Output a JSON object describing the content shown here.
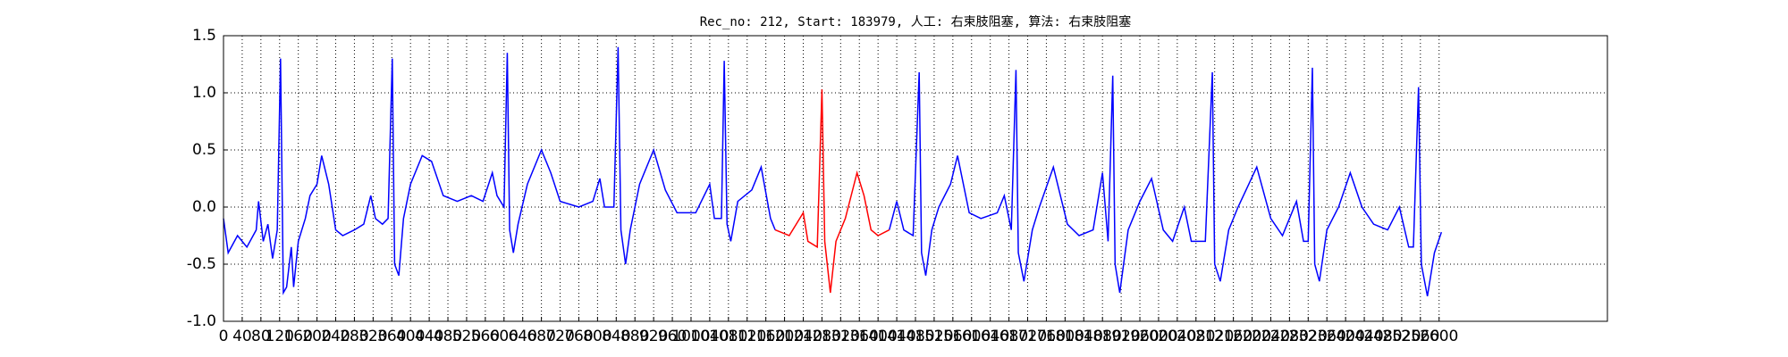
{
  "chart_data": {
    "type": "line",
    "title": "Rec_no: 212, Start: 183979, 人工: 右束肢阻塞, 算法: 右束肢阻塞",
    "x": [
      0,
      10,
      30,
      50,
      70,
      75,
      85,
      95,
      105,
      115,
      122,
      128,
      135,
      145,
      150,
      160,
      175,
      185,
      200,
      210,
      225,
      240,
      255,
      280,
      300,
      315,
      325,
      340,
      352,
      361,
      366,
      375,
      385,
      400,
      425,
      445,
      470,
      500,
      530,
      555,
      575,
      585,
      600,
      607,
      612,
      620,
      630,
      650,
      680,
      700,
      720,
      760,
      790,
      805,
      815,
      835,
      844,
      850,
      860,
      870,
      890,
      920,
      945,
      970,
      1010,
      1040,
      1050,
      1065,
      1071,
      1077,
      1085,
      1100,
      1130,
      1150,
      1170,
      1180,
      1210,
      1240,
      1250,
      1270,
      1280,
      1286,
      1298,
      1310,
      1330,
      1355,
      1370,
      1385,
      1400,
      1424,
      1440,
      1455,
      1475,
      1488,
      1493,
      1502,
      1515,
      1530,
      1555,
      1570,
      1595,
      1620,
      1655,
      1670,
      1685,
      1695,
      1700,
      1712,
      1730,
      1745,
      1775,
      1805,
      1830,
      1860,
      1880,
      1892,
      1902,
      1907,
      1917,
      1935,
      1960,
      1985,
      2010,
      2030,
      2055,
      2070,
      2100,
      2115,
      2120,
      2132,
      2150,
      2170,
      2210,
      2240,
      2265,
      2280,
      2295,
      2310,
      2320,
      2329,
      2334,
      2344,
      2360,
      2385,
      2410,
      2435,
      2460,
      2490,
      2515,
      2535,
      2545,
      2556,
      2562,
      2575,
      2590,
      2605
    ],
    "series": [
      {
        "color": "#0000ff",
        "values": [
          -0.1,
          -0.4,
          -0.25,
          -0.35,
          -0.2,
          0.05,
          -0.3,
          -0.15,
          -0.45,
          -0.2,
          1.3,
          -0.75,
          -0.7,
          -0.35,
          -0.7,
          -0.3,
          -0.1,
          0.1,
          0.2,
          0.45,
          0.2,
          -0.2,
          -0.25,
          -0.2,
          -0.15,
          0.1,
          -0.1,
          -0.15,
          -0.1,
          1.3,
          -0.5,
          -0.6,
          -0.1,
          0.2,
          0.45,
          0.4,
          0.1,
          0.05,
          0.1,
          0.05,
          0.3,
          0.1,
          0.0,
          1.35,
          -0.2,
          -0.4,
          -0.15,
          0.2,
          0.5,
          0.3,
          0.05,
          0.0,
          0.05,
          0.25,
          0.0,
          0.0,
          1.4,
          -0.2,
          -0.5,
          -0.2,
          0.2,
          0.5,
          0.15,
          -0.05,
          -0.05,
          0.2,
          -0.1,
          -0.1,
          1.28,
          -0.15,
          -0.3,
          0.05,
          0.15,
          0.35,
          -0.1,
          -0.2,
          null,
          null,
          null,
          null,
          null,
          null,
          null,
          null,
          null,
          null,
          null,
          null,
          null,
          -0.2,
          0.05,
          -0.2,
          -0.25,
          1.18,
          -0.4,
          -0.6,
          -0.2,
          0.0,
          0.2,
          0.45,
          -0.05,
          -0.1,
          -0.05,
          0.1,
          -0.2,
          1.2,
          -0.4,
          -0.65,
          -0.2,
          0.0,
          0.35,
          -0.15,
          -0.25,
          -0.2,
          0.3,
          -0.3,
          1.15,
          -0.5,
          -0.75,
          -0.2,
          0.05,
          0.25,
          -0.2,
          -0.3,
          0.0,
          -0.3,
          -0.3,
          1.18,
          -0.5,
          -0.65,
          -0.2,
          0.0,
          0.35,
          -0.1,
          -0.25,
          -0.1,
          0.05,
          -0.3,
          -0.3,
          1.22,
          -0.5,
          -0.65,
          -0.2,
          0.0,
          0.3,
          0.0,
          -0.15,
          -0.2,
          0.0,
          -0.35,
          -0.35,
          1.05,
          -0.5,
          -0.78,
          -0.4,
          -0.22
        ]
      },
      {
        "color": "#ff0000",
        "values": [
          null,
          null,
          null,
          null,
          null,
          null,
          null,
          null,
          null,
          null,
          null,
          null,
          null,
          null,
          null,
          null,
          null,
          null,
          null,
          null,
          null,
          null,
          null,
          null,
          null,
          null,
          null,
          null,
          null,
          null,
          null,
          null,
          null,
          null,
          null,
          null,
          null,
          null,
          null,
          null,
          null,
          null,
          null,
          null,
          null,
          null,
          null,
          null,
          null,
          null,
          null,
          null,
          null,
          null,
          null,
          null,
          null,
          null,
          null,
          null,
          null,
          null,
          null,
          null,
          null,
          null,
          null,
          null,
          null,
          null,
          null,
          null,
          null,
          null,
          null,
          -0.2,
          -0.25,
          -0.05,
          -0.3,
          -0.35,
          1.03,
          -0.3,
          -0.75,
          -0.3,
          -0.1,
          0.3,
          0.1,
          -0.2,
          -0.25,
          -0.2,
          null,
          null,
          null,
          null,
          null,
          null,
          null,
          null,
          null,
          null,
          null,
          null,
          null,
          null,
          null,
          null,
          null,
          null,
          null,
          null,
          null,
          null,
          null,
          null,
          null,
          null,
          null,
          null,
          null,
          null,
          null,
          null,
          null,
          null,
          null,
          null,
          null,
          null,
          null,
          null,
          null,
          null,
          null,
          null,
          null,
          null,
          null,
          null,
          null,
          null,
          null,
          null,
          null,
          null,
          null,
          null,
          null,
          null,
          null,
          null,
          null,
          null,
          null,
          null,
          null,
          null
        ]
      }
    ],
    "xlim": [
      0,
      2960
    ],
    "xticks": [
      0,
      40,
      80,
      120,
      160,
      200,
      240,
      280,
      320,
      360,
      400,
      440,
      480,
      520,
      560,
      600,
      640,
      680,
      720,
      760,
      800,
      840,
      880,
      920,
      960,
      1000,
      1040,
      1080,
      1120,
      1160,
      1200,
      1240,
      1280,
      1320,
      1360,
      1400,
      1440,
      1480,
      1520,
      1560,
      1600,
      1640,
      1680,
      1720,
      1760,
      1800,
      1840,
      1880,
      1920,
      1960,
      2000,
      2040,
      2080,
      2120,
      2160,
      2200,
      2240,
      2280,
      2320,
      2360,
      2400,
      2440,
      2480,
      2520,
      2560,
      2600
    ],
    "ylim": [
      -1,
      1.5
    ],
    "yticks": [
      {
        "value": -1,
        "label": "-1.0"
      },
      -0.5,
      {
        "value": 0,
        "label": "0.0"
      },
      0.5,
      {
        "value": 1,
        "label": "1.0"
      },
      1.5
    ],
    "grid": true
  }
}
